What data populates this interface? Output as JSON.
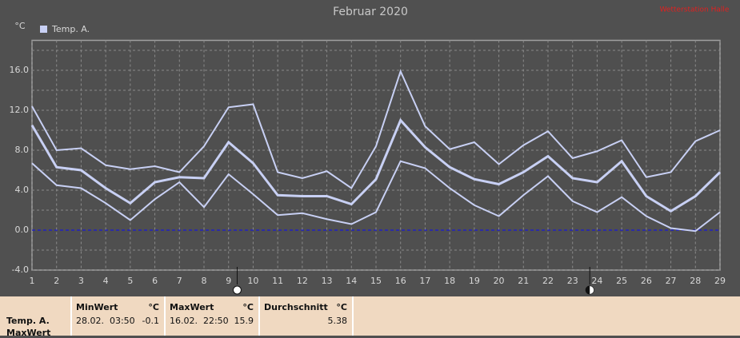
{
  "chart_data": {
    "type": "line",
    "title": "Februar 2020",
    "source": "Wetterstation Halle",
    "ylabel": "°C",
    "x": [
      1,
      2,
      3,
      4,
      5,
      6,
      7,
      8,
      9,
      10,
      11,
      12,
      13,
      14,
      15,
      16,
      17,
      18,
      19,
      20,
      21,
      22,
      23,
      24,
      25,
      26,
      27,
      28,
      29
    ],
    "xlim": [
      1,
      29
    ],
    "xticks": [
      1,
      2,
      3,
      4,
      5,
      6,
      7,
      8,
      9,
      10,
      11,
      12,
      13,
      14,
      15,
      16,
      17,
      18,
      19,
      20,
      21,
      22,
      23,
      24,
      25,
      26,
      27,
      28,
      29
    ],
    "ylim": [
      -4,
      19
    ],
    "yticks": [
      {
        "value": -4,
        "label": "-4.0"
      },
      {
        "value": 0,
        "label": "0.0"
      },
      {
        "value": 4,
        "label": "4.0"
      },
      {
        "value": 8,
        "label": "8.0"
      },
      {
        "value": 12,
        "label": "12.0"
      },
      {
        "value": 16,
        "label": "16.0"
      }
    ],
    "yminorticks": [
      -2,
      2,
      6,
      10,
      14,
      18
    ],
    "grid": true,
    "zero_line_color": "#2020c0",
    "moon_phases": [
      9.35,
      23.7
    ],
    "series": [
      {
        "name": "Temp. A.",
        "color": "#c8d0f4",
        "max": [
          12.4,
          8.0,
          8.2,
          6.5,
          6.1,
          6.4,
          5.8,
          8.4,
          12.3,
          12.6,
          5.8,
          5.2,
          5.9,
          4.2,
          8.4,
          15.9,
          10.4,
          8.1,
          8.8,
          6.6,
          8.5,
          9.9,
          7.2,
          7.9,
          9.0,
          5.3,
          5.8,
          8.9,
          10.0
        ],
        "mean": [
          10.5,
          6.3,
          6.0,
          4.2,
          2.7,
          4.8,
          5.3,
          5.2,
          8.8,
          6.7,
          3.5,
          3.4,
          3.4,
          2.6,
          5.1,
          11.0,
          8.3,
          6.3,
          5.1,
          4.6,
          5.8,
          7.4,
          5.2,
          4.8,
          6.9,
          3.4,
          1.9,
          3.4,
          5.8
        ],
        "min": [
          6.7,
          4.5,
          4.2,
          2.7,
          1.0,
          3.1,
          4.8,
          2.3,
          5.6,
          3.6,
          1.5,
          1.7,
          1.1,
          0.6,
          1.8,
          6.9,
          6.2,
          4.2,
          2.5,
          1.4,
          3.5,
          5.4,
          2.9,
          1.8,
          3.3,
          1.4,
          0.2,
          -0.1,
          1.8
        ]
      }
    ]
  },
  "table": {
    "row_labels": [
      "Temp. A.",
      "MaxWert"
    ],
    "columns": [
      {
        "header": "MinWert",
        "unit": "°C",
        "time": "28.02.  03:50",
        "value": "-0.1"
      },
      {
        "header": "MaxWert",
        "unit": "°C",
        "time": "16.02.  22:50",
        "value": "15.9"
      },
      {
        "header": "Durchschnitt",
        "unit": "°C",
        "value": "5.38"
      }
    ]
  }
}
